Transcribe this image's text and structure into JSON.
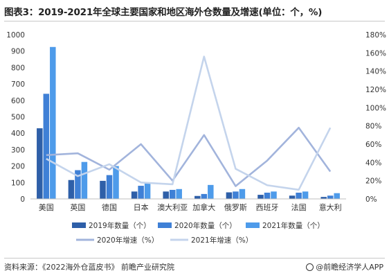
{
  "title": "图表3：2019-2021年全球主要国家和地区海外仓数量及增速(单位：个，%)",
  "source": "资料来源：《2022海外仓蓝皮书》 前瞻产业研究院",
  "brand": "@前瞻经济学人APP",
  "chart_data": {
    "type": "bar",
    "categories": [
      "美国",
      "英国",
      "德国",
      "日本",
      "澳大利亚",
      "加拿大",
      "俄罗斯",
      "西班牙",
      "法国",
      "意大利"
    ],
    "series": [
      {
        "name": "2019年数量（个）",
        "kind": "bar",
        "axis": "left",
        "color": "#2e5fa8",
        "values": [
          430,
          115,
          110,
          45,
          45,
          18,
          40,
          25,
          20,
          12
        ]
      },
      {
        "name": "2020年数量（个）",
        "kind": "bar",
        "axis": "left",
        "color": "#3f80d6",
        "values": [
          640,
          175,
          145,
          80,
          55,
          30,
          45,
          38,
          38,
          20
        ]
      },
      {
        "name": "2021年数量（个）",
        "kind": "bar",
        "axis": "left",
        "color": "#4e9bea",
        "values": [
          925,
          225,
          200,
          95,
          60,
          85,
          60,
          45,
          45,
          35
        ]
      },
      {
        "name": "2020年增速（%）",
        "kind": "line",
        "axis": "right",
        "color": "#a2b4dc",
        "values": [
          48,
          50,
          32,
          60,
          20,
          70,
          14,
          42,
          78,
          30
        ]
      },
      {
        "name": "2021年增速（%）",
        "kind": "line",
        "axis": "right",
        "color": "#c4d4ec",
        "values": [
          44,
          25,
          38,
          18,
          16,
          156,
          33,
          15,
          10,
          78
        ]
      }
    ],
    "y_left": {
      "min": 0,
      "max": 1000,
      "ticks": [
        "0",
        "100",
        "200",
        "300",
        "400",
        "500",
        "600",
        "700",
        "800",
        "900",
        "1000"
      ]
    },
    "y_right": {
      "min": 0,
      "max": 180,
      "ticks": [
        "0%",
        "20%",
        "40%",
        "60%",
        "80%",
        "100%",
        "120%",
        "140%",
        "160%",
        "180%"
      ]
    },
    "grid": false,
    "legend": "bottom"
  }
}
